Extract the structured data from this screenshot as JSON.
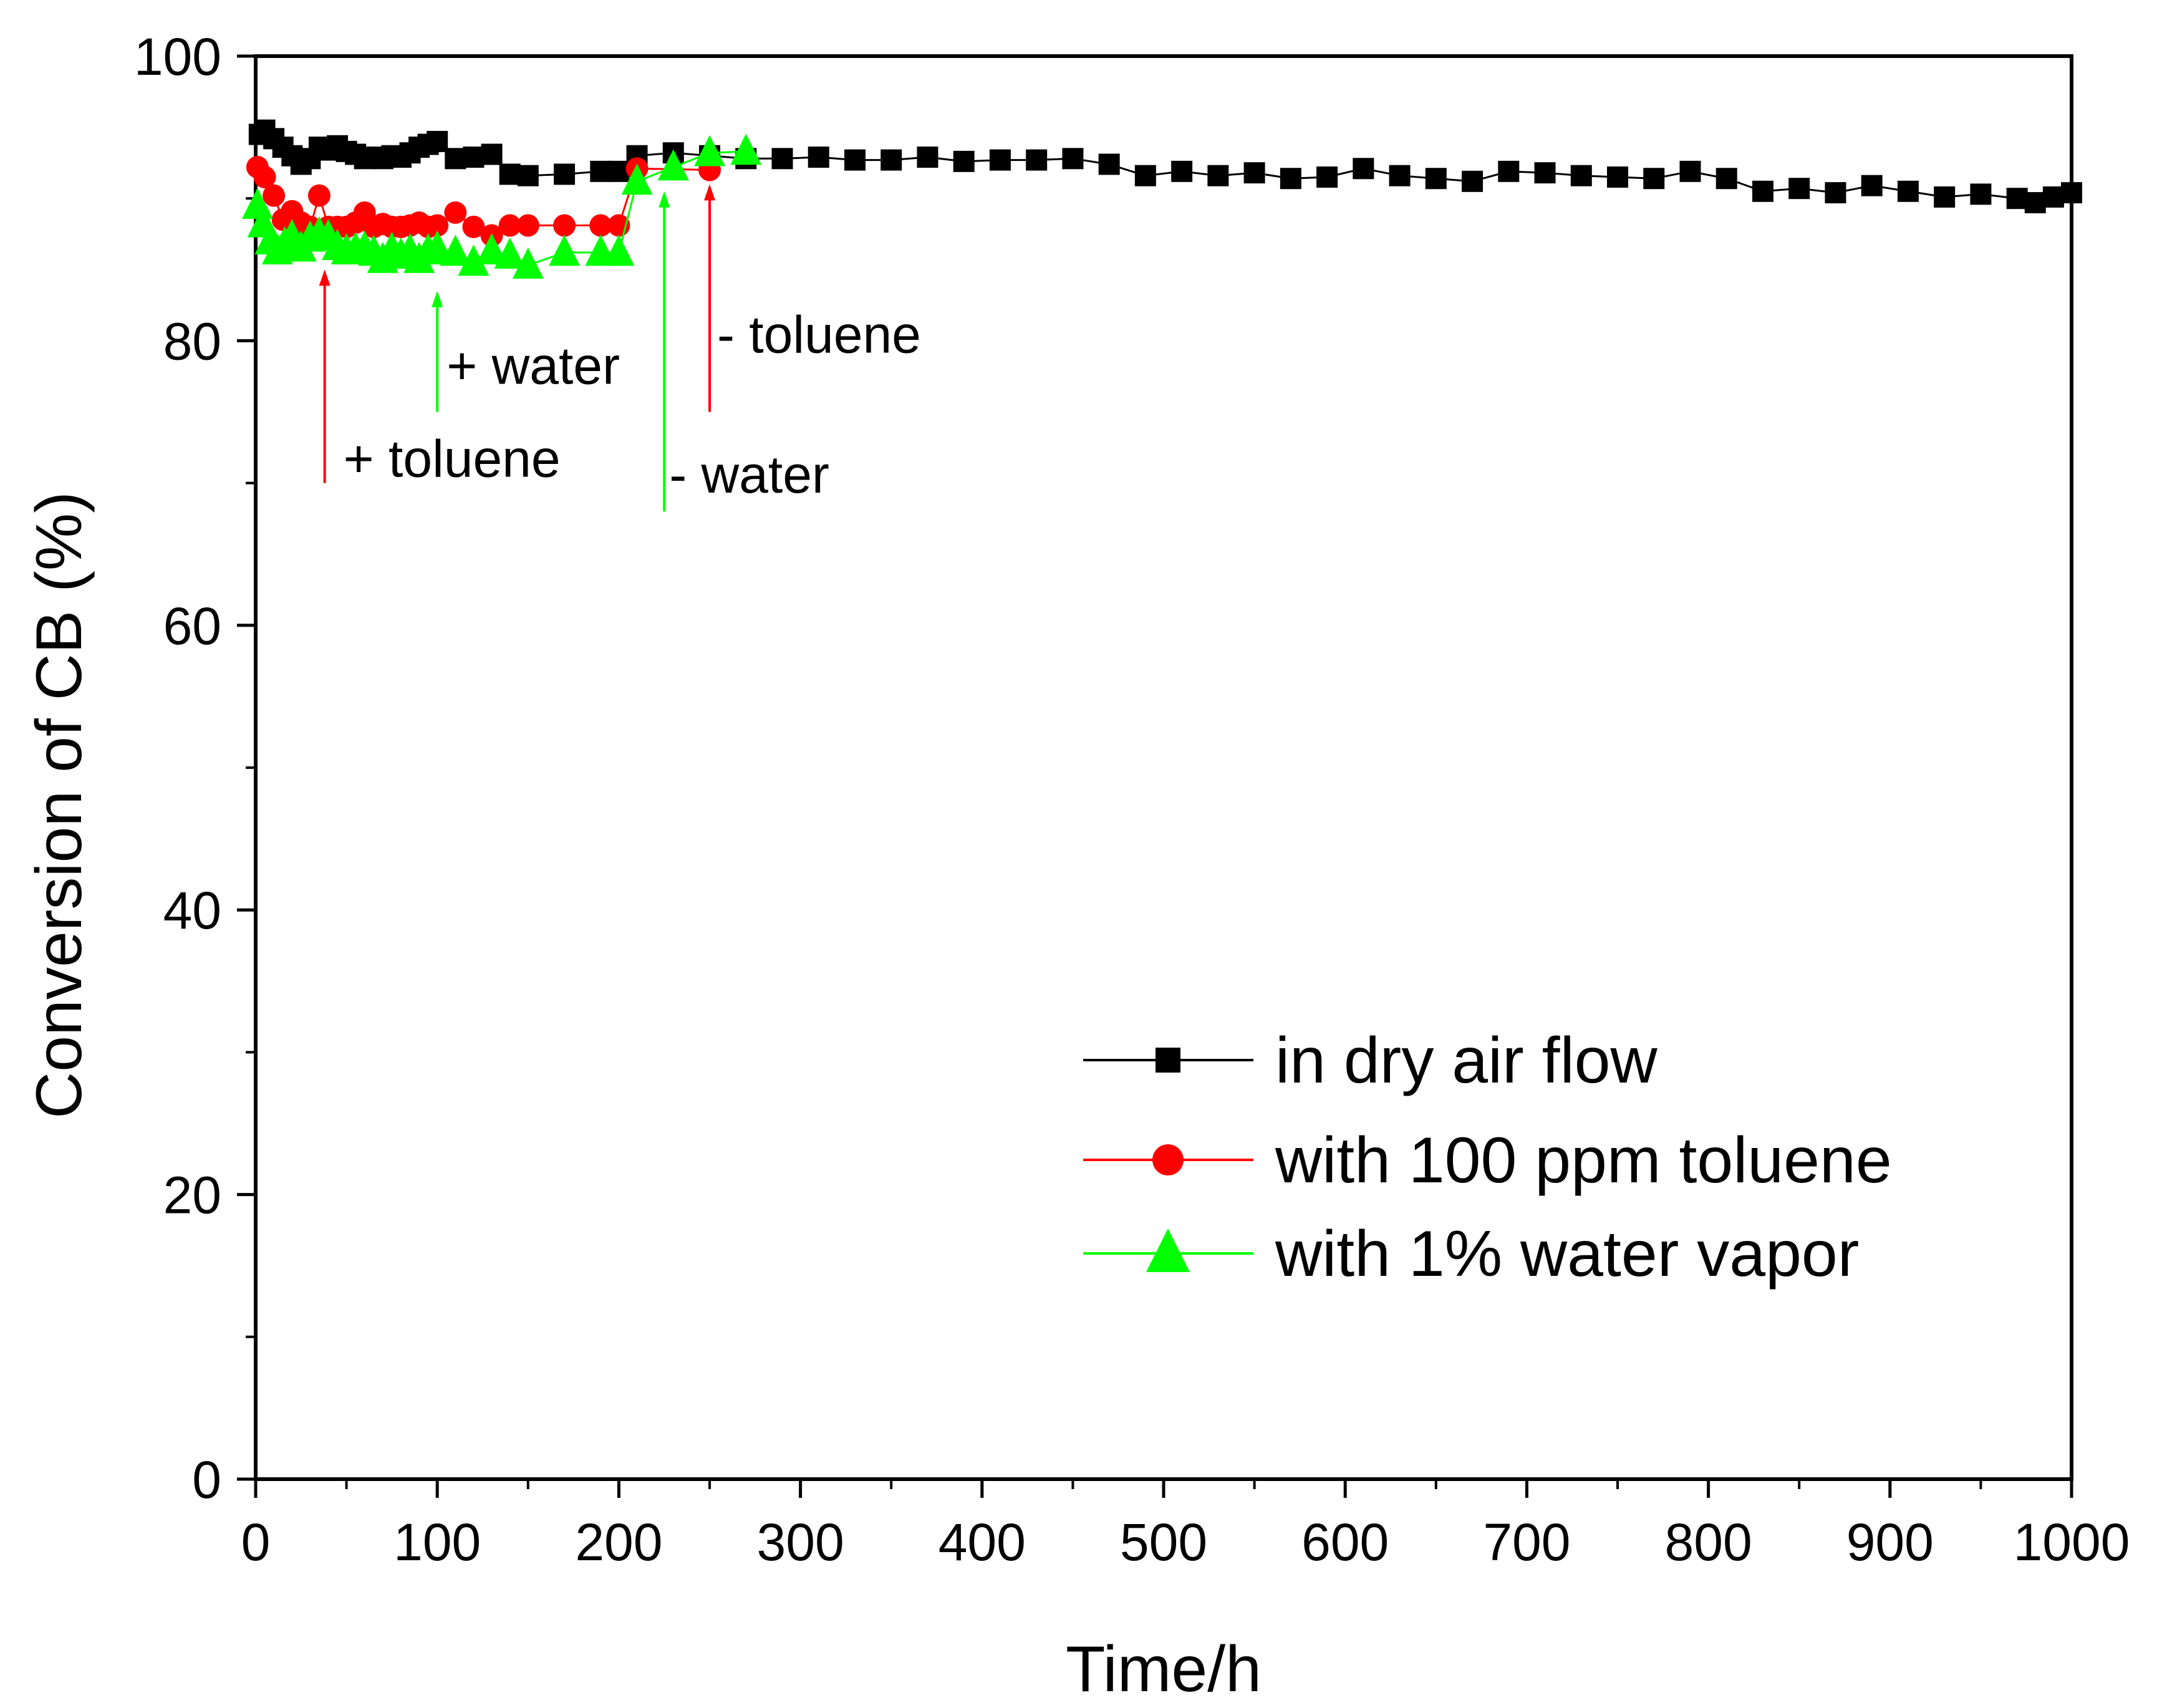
{
  "chart_data": {
    "type": "scatter",
    "title": "",
    "xlabel": "Time/h",
    "ylabel": "Conversion of CB (%)",
    "xlim": [
      0,
      1000
    ],
    "ylim": [
      0,
      100
    ],
    "xticks": [
      0,
      100,
      200,
      300,
      400,
      500,
      600,
      700,
      800,
      900,
      1000
    ],
    "yticks": [
      0,
      20,
      40,
      60,
      80,
      100
    ],
    "xtick_labels": [
      "0",
      "100",
      "200",
      "300",
      "400",
      "500",
      "600",
      "700",
      "800",
      "900",
      "1000"
    ],
    "ytick_labels": [
      "0",
      "20",
      "40",
      "60",
      "80",
      "100"
    ],
    "grid": false,
    "legend_position": "lower-right",
    "series": [
      {
        "name": "in dry air flow",
        "marker": "square",
        "color": "#000000",
        "x": [
          2,
          5,
          10,
          15,
          20,
          25,
          30,
          35,
          40,
          45,
          50,
          55,
          60,
          65,
          70,
          75,
          80,
          85,
          90,
          95,
          100,
          110,
          120,
          130,
          140,
          150,
          170,
          190,
          200,
          210,
          230,
          250,
          270,
          290,
          310,
          330,
          350,
          370,
          390,
          410,
          430,
          450,
          470,
          490,
          510,
          530,
          550,
          570,
          590,
          610,
          630,
          650,
          670,
          690,
          710,
          730,
          750,
          770,
          790,
          810,
          830,
          850,
          870,
          890,
          910,
          930,
          950,
          970,
          980,
          990,
          1000
        ],
        "y": [
          94.5,
          94.8,
          94.2,
          93.6,
          93.0,
          92.4,
          92.8,
          93.6,
          93.4,
          93.7,
          93.3,
          93.1,
          92.8,
          92.9,
          92.8,
          93.0,
          92.9,
          93.2,
          93.6,
          93.8,
          94.0,
          92.8,
          92.9,
          93.1,
          91.7,
          91.6,
          91.7,
          91.9,
          91.9,
          93.0,
          93.2,
          93.0,
          92.8,
          92.8,
          92.9,
          92.7,
          92.7,
          92.9,
          92.6,
          92.7,
          92.7,
          92.8,
          92.4,
          91.6,
          91.9,
          91.6,
          91.8,
          91.4,
          91.5,
          92.1,
          91.6,
          91.4,
          91.2,
          91.9,
          91.8,
          91.6,
          91.5,
          91.4,
          91.9,
          91.4,
          90.5,
          90.7,
          90.4,
          90.9,
          90.5,
          90.1,
          90.3,
          90.0,
          89.7,
          90.1,
          90.4
        ]
      },
      {
        "name": "with 100 ppm toluene",
        "marker": "circle",
        "color": "#ff0000",
        "x": [
          1,
          5,
          10,
          15,
          20,
          25,
          30,
          35,
          40,
          45,
          50,
          55,
          60,
          65,
          70,
          75,
          80,
          85,
          90,
          95,
          100,
          110,
          120,
          130,
          140,
          150,
          170,
          190,
          200,
          210,
          250
        ],
        "y": [
          92.2,
          91.5,
          90.2,
          88.5,
          89.1,
          88.3,
          88.0,
          90.2,
          88.0,
          88.0,
          88.0,
          88.3,
          89.0,
          88.0,
          88.2,
          88.0,
          88.0,
          88.1,
          88.3,
          88.0,
          88.1,
          89.0,
          88.0,
          87.4,
          88.1,
          88.1,
          88.1,
          88.1,
          88.1,
          92.1,
          92.0
        ]
      },
      {
        "name": "with 1% water vapor",
        "marker": "triangle",
        "color": "#00ff00",
        "x": [
          1,
          4,
          8,
          12,
          16,
          20,
          25,
          30,
          35,
          40,
          45,
          50,
          55,
          60,
          65,
          70,
          75,
          80,
          85,
          90,
          95,
          100,
          110,
          120,
          130,
          140,
          150,
          170,
          190,
          200,
          210,
          230,
          250,
          270
        ],
        "y": [
          89.5,
          88.2,
          87.0,
          86.3,
          86.8,
          87.3,
          86.5,
          87.2,
          87.5,
          87.3,
          86.6,
          86.3,
          86.4,
          86.5,
          86.2,
          85.7,
          86.4,
          86.0,
          86.3,
          85.7,
          86.3,
          86.5,
          86.2,
          85.5,
          86.3,
          86.0,
          85.3,
          86.2,
          86.2,
          86.2,
          91.2,
          92.2,
          93.2,
          93.3
        ]
      }
    ],
    "annotations": [
      {
        "text": "+ toluene",
        "arrow_x": 38,
        "arrow_from_y": 70,
        "arrow_to_y": 85,
        "color": "#ff0000"
      },
      {
        "text": "+ water",
        "arrow_x": 100,
        "arrow_from_y": 75,
        "arrow_to_y": 83.5,
        "color": "#00ff00"
      },
      {
        "text": "- water",
        "arrow_x": 225,
        "arrow_from_y": 68,
        "arrow_to_y": 90.5,
        "color": "#00ff00"
      },
      {
        "text": "- toluene",
        "arrow_x": 250,
        "arrow_from_y": 75,
        "arrow_to_y": 91,
        "color": "#ff0000"
      }
    ]
  }
}
